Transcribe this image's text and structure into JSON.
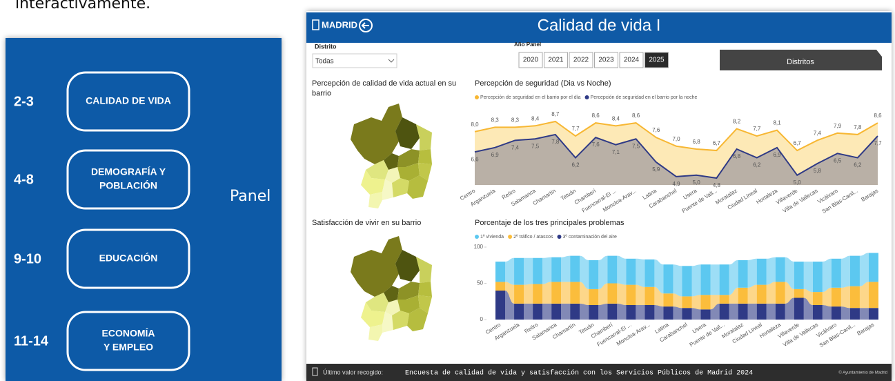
{
  "intro_text": "interactivamente.",
  "menu": {
    "items": [
      {
        "pages": "2-3",
        "label": [
          "CALIDAD DE VIDA"
        ]
      },
      {
        "pages": "4-8",
        "label": [
          "DEMOGRAFÍA Y",
          "POBLACIÓN"
        ]
      },
      {
        "pages": "9-10",
        "label": [
          "EDUCACIÓN"
        ]
      },
      {
        "pages": "11-14",
        "label": [
          "ECONOMÍA",
          "Y EMPLEO"
        ]
      }
    ],
    "side_label": "Panel"
  },
  "dashboard": {
    "header": {
      "logo": "MADRID",
      "title": "Calidad de vida I"
    },
    "filters": {
      "district_label": "Distrito",
      "district_value": "Todas",
      "year_label": "Año Panel",
      "years": [
        "2020",
        "2021",
        "2022",
        "2023",
        "2024",
        "2025"
      ],
      "selected_year": "2025"
    },
    "tab": "Distritos",
    "maps": [
      {
        "title": "Percepción de calidad de vida actual en su barrio"
      },
      {
        "title": "Satisfacción de vivir en su barrio"
      }
    ],
    "footer": {
      "label": "Último valor recogido:",
      "source": "Encuesta de calidad de vida y satisfacción con los Servicios Públicos de Madrid 2024",
      "credit": "© Ayuntamiento de Madrid"
    }
  },
  "chart_data": [
    {
      "type": "line",
      "title": "Percepción de seguridad (Dia vs Noche)",
      "categories": [
        "Centro",
        "Arganzuela",
        "Retiro",
        "Salamanca",
        "Chamartín",
        "Tetuán",
        "Chamberí",
        "Fuencarral-El ...",
        "Moncloa-Arav...",
        "Latina",
        "Carabanchel",
        "Usera",
        "Puente de Vall...",
        "Moratalaz",
        "Ciudad Lineal",
        "Hortaleza",
        "Villaverde",
        "Villa de Vallecas",
        "Vicálvaro",
        "San Blas-Canil...",
        "Barajas"
      ],
      "series": [
        {
          "name": "Percepción de seguridad en el barrio por el día",
          "color": "#f7b733",
          "area_color": "#fde9b6",
          "values": [
            8.0,
            8.3,
            8.3,
            8.4,
            8.7,
            7.7,
            8.6,
            8.4,
            8.6,
            7.6,
            7.0,
            6.8,
            6.7,
            8.2,
            7.7,
            8.1,
            6.7,
            7.4,
            7.9,
            7.8,
            8.6
          ],
          "value_labels": [
            "8,0",
            "8,3",
            "8,3",
            "8,4",
            "8,7",
            "7,7",
            "8,6",
            "8,4",
            "8,6",
            "7,6",
            "7,0",
            "6,8",
            "6,7",
            "8,2",
            "7,7",
            "8,1",
            "6,7",
            "7,4",
            "7,9",
            "7,8",
            "8,6"
          ]
        },
        {
          "name": "Percepción de seguridad en el barrio por la noche",
          "color": "#2f3a86",
          "area_color": "#b9b0a6",
          "values": [
            6.6,
            6.9,
            7.4,
            7.5,
            7.8,
            6.2,
            7.6,
            7.1,
            7.5,
            5.9,
            4.9,
            5.0,
            4.8,
            6.8,
            6.2,
            6.9,
            5.0,
            5.8,
            6.5,
            6.2,
            7.7
          ],
          "value_labels": [
            "6,6",
            "6,9",
            "7,4",
            "7,5",
            "7,8",
            "6,2",
            "7,6",
            "7,1",
            "7,5",
            "5,9",
            "4,9",
            "5,0",
            "4,8",
            "6,8",
            "6,2",
            "6,9",
            "5,0",
            "5,8",
            "6,5",
            "6,2",
            "7,7"
          ]
        }
      ]
    },
    {
      "type": "ribbon",
      "title": "Porcentaje de los tres principales problemas",
      "categories": [
        "Centro",
        "Arganzuela",
        "Retiro",
        "Salamanca",
        "Chamartín",
        "Tetuán",
        "Chamberí",
        "Fuencarral-El ...",
        "Moncloa-Arav...",
        "Latina",
        "Carabanchel",
        "Usera",
        "Puente de Vall...",
        "Moratalaz",
        "Ciudad Lineal",
        "Hortaleza",
        "Villaverde",
        "Villa de Vallecas",
        "Vicálvaro",
        "San Blas-Canil...",
        "Barajas"
      ],
      "ylim": [
        0,
        100
      ],
      "yticks": [
        0,
        50,
        100
      ],
      "series": [
        {
          "name": "3º contaminación del aire",
          "color": "#2f3a86",
          "values": [
            40,
            22,
            22,
            22,
            22,
            20,
            22,
            20,
            20,
            18,
            16,
            14,
            22,
            22,
            22,
            22,
            30,
            20,
            18,
            16,
            16
          ]
        },
        {
          "name": "2º tráfico / atascos",
          "color": "#fbbd3c",
          "values": [
            12,
            26,
            27,
            30,
            30,
            22,
            28,
            28,
            25,
            18,
            16,
            20,
            12,
            22,
            26,
            30,
            12,
            18,
            26,
            30,
            36
          ]
        },
        {
          "name": "1º vivienda",
          "color": "#5cc8f0",
          "values": [
            28,
            37,
            36,
            34,
            36,
            40,
            38,
            36,
            38,
            40,
            42,
            42,
            42,
            38,
            36,
            34,
            38,
            42,
            40,
            42,
            40
          ]
        }
      ],
      "legend_order": [
        2,
        1,
        0
      ]
    }
  ]
}
